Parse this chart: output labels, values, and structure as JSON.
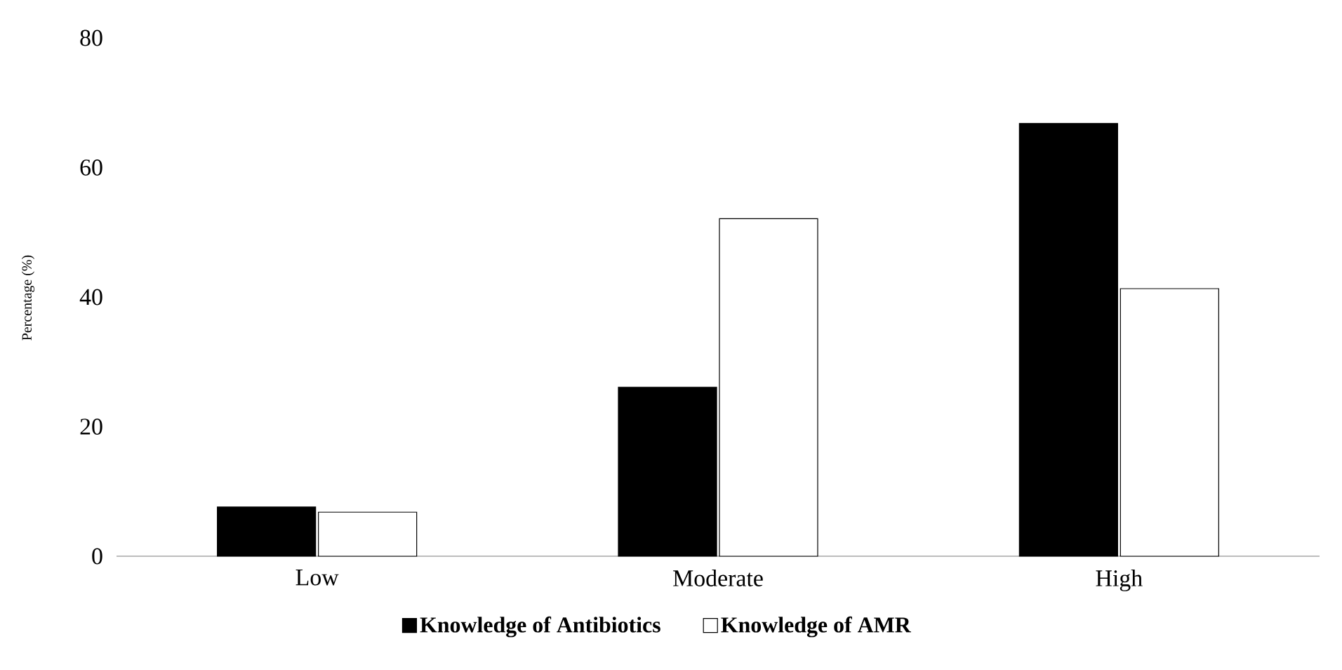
{
  "chart_data": {
    "type": "bar",
    "ylabel": "Percentage (%)",
    "categories": [
      "Low",
      "Moderate",
      "High"
    ],
    "series": [
      {
        "name": "Knowledge of Antibiotics",
        "color": "#000000",
        "values": [
          7.6,
          26.1,
          66.8
        ]
      },
      {
        "name": "Knowledge of AMR",
        "color": "#ffffff",
        "values": [
          6.8,
          52.1,
          41.3
        ]
      }
    ],
    "ylim": [
      0,
      80
    ],
    "yticks": [
      0,
      20,
      40,
      60,
      80
    ],
    "legend": "bottom"
  }
}
